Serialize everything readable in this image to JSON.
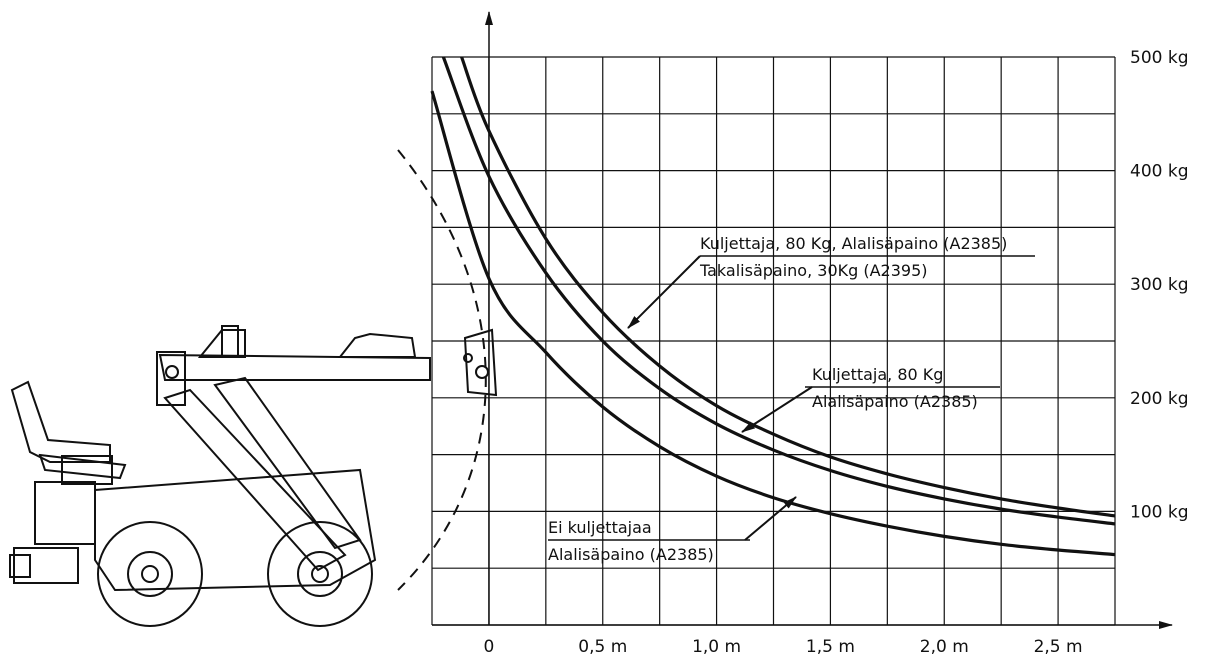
{
  "chart_data": {
    "type": "line",
    "x_ticks": [
      {
        "value": 0,
        "label": "0"
      },
      {
        "value": 0.5,
        "label": "0,5 m"
      },
      {
        "value": 1.0,
        "label": "1,0 m"
      },
      {
        "value": 1.5,
        "label": "1,5 m"
      },
      {
        "value": 2.0,
        "label": "2,0 m"
      },
      {
        "value": 2.5,
        "label": "2,5 m"
      }
    ],
    "y_ticks": [
      {
        "value": 100,
        "label": "100 kg"
      },
      {
        "value": 200,
        "label": "200 kg"
      },
      {
        "value": 300,
        "label": "300 kg"
      },
      {
        "value": 400,
        "label": "400 kg"
      },
      {
        "value": 500,
        "label": "500 kg"
      }
    ],
    "xlim": [
      -0.25,
      2.75
    ],
    "ylim": [
      0,
      500
    ],
    "grid": true,
    "series": [
      {
        "label_lines": [
          "Kuljettaja, 80 Kg, Alalisäpaino (A2385)",
          "Takalisäpaino, 30Kg (A2395)"
        ],
        "x": [
          -0.12,
          0.0,
          0.25,
          0.5,
          0.75,
          1.0,
          1.25,
          1.5,
          1.75,
          2.0,
          2.25,
          2.5,
          2.75
        ],
        "y": [
          500,
          435,
          340,
          275,
          228,
          193,
          168,
          148,
          133,
          121,
          111,
          103,
          96
        ]
      },
      {
        "label_lines": [
          "Kuljettaja, 80 Kg",
          "Alalisäpaino (A2385)"
        ],
        "x": [
          -0.2,
          0.0,
          0.25,
          0.5,
          0.75,
          1.0,
          1.25,
          1.5,
          1.75,
          2.0,
          2.25,
          2.5,
          2.75
        ],
        "y": [
          500,
          395,
          310,
          250,
          208,
          177,
          154,
          136,
          122,
          111,
          102,
          95,
          89
        ]
      },
      {
        "label_lines": [
          "Ei kuljettajaa",
          "Alalisäpaino (A2385)"
        ],
        "x": [
          -0.25,
          0.0,
          0.25,
          0.5,
          0.75,
          1.0,
          1.25,
          1.5,
          1.75,
          2.0,
          2.25,
          2.5,
          2.75
        ],
        "y": [
          470,
          305,
          240,
          192,
          157,
          131,
          112,
          98,
          87,
          78,
          71,
          66,
          62
        ]
      }
    ]
  }
}
